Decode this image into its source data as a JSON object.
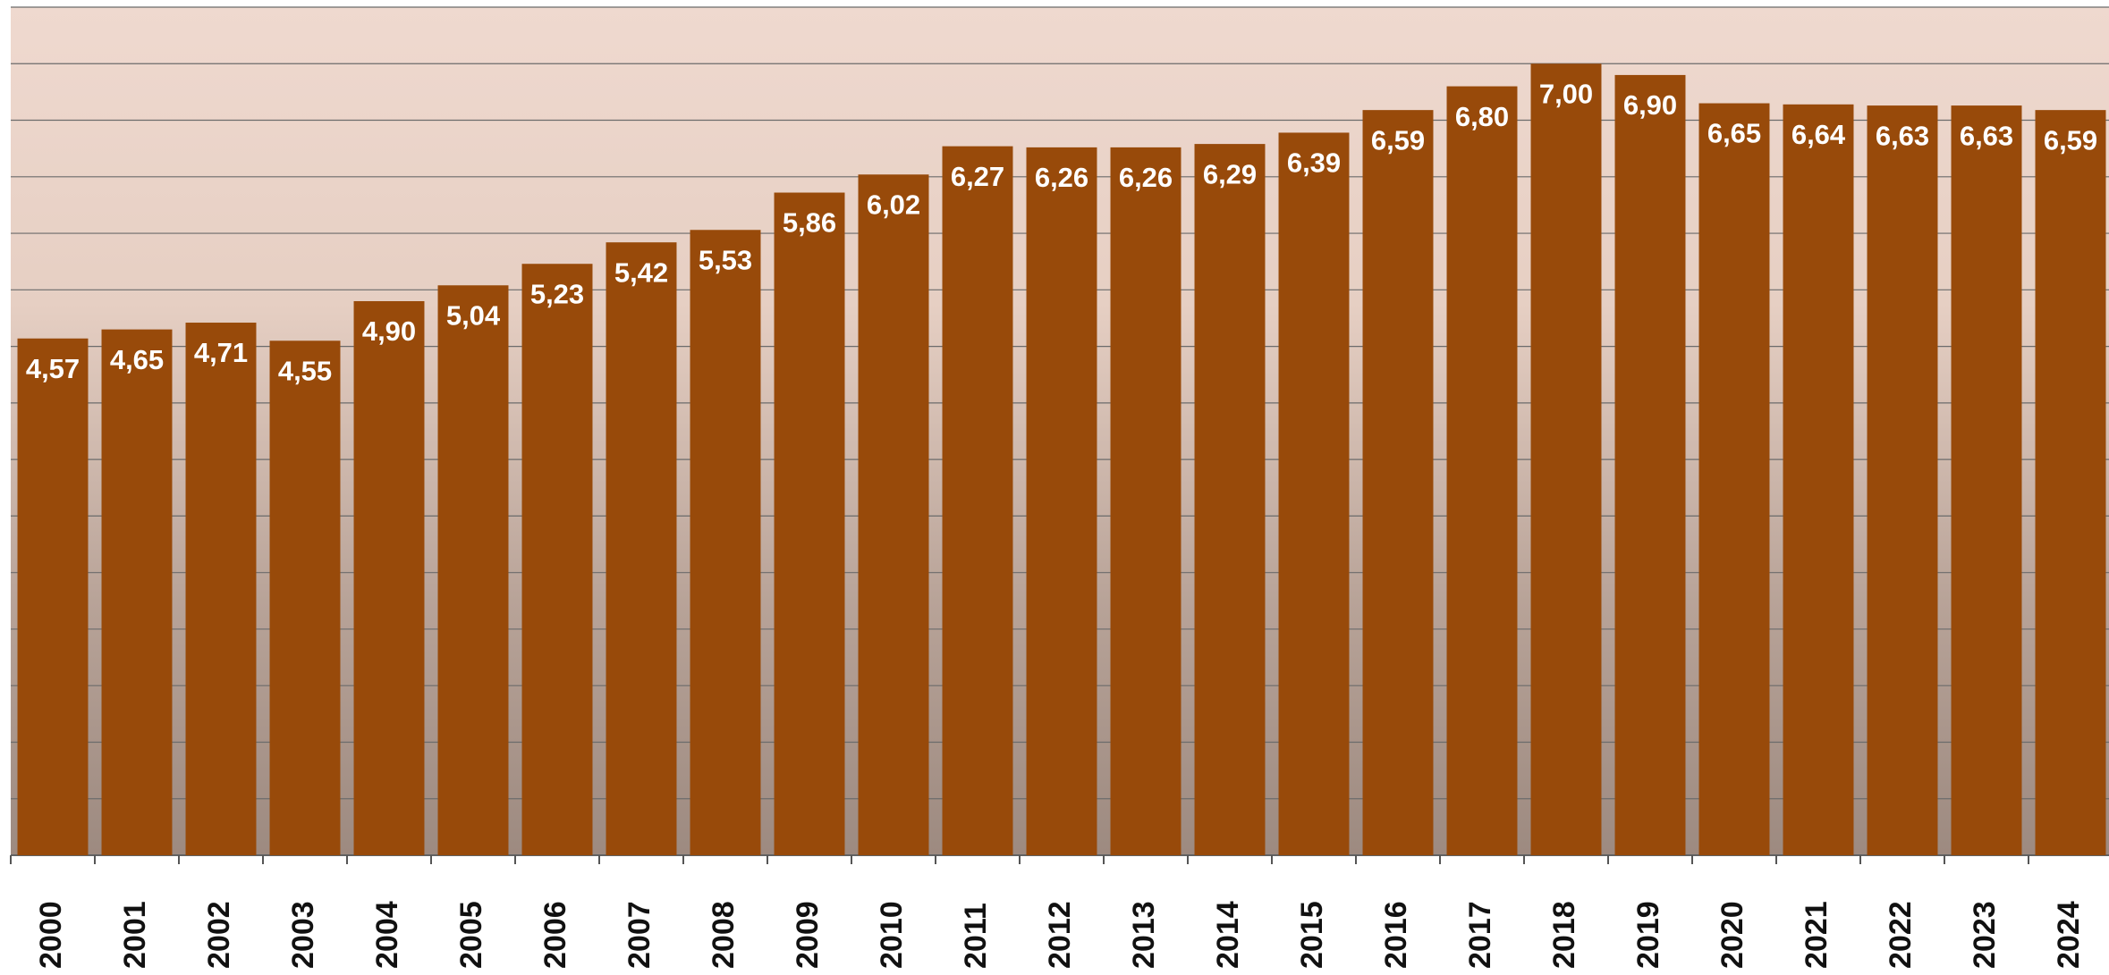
{
  "chart_data": {
    "type": "bar",
    "categories": [
      "2000",
      "2001",
      "2002",
      "2003",
      "2004",
      "2005",
      "2006",
      "2007",
      "2008",
      "2009",
      "2010",
      "2011",
      "2012",
      "2013",
      "2014",
      "2015",
      "2016",
      "2017",
      "2018",
      "2019",
      "2020",
      "2021",
      "2022",
      "2023",
      "2024"
    ],
    "values": [
      4.57,
      4.65,
      4.71,
      4.55,
      4.9,
      5.04,
      5.23,
      5.42,
      5.53,
      5.86,
      6.02,
      6.27,
      6.26,
      6.26,
      6.29,
      6.39,
      6.59,
      6.8,
      7.0,
      6.9,
      6.65,
      6.64,
      6.63,
      6.63,
      6.59
    ],
    "value_labels": [
      "4,57",
      "4,65",
      "4,71",
      "4,55",
      "4,90",
      "5,04",
      "5,23",
      "5,42",
      "5,53",
      "5,86",
      "6,02",
      "6,27",
      "6,26",
      "6,26",
      "6,29",
      "6,39",
      "6,59",
      "6,80",
      "7,00",
      "6,90",
      "6,65",
      "6,64",
      "6,63",
      "6,63",
      "6,59"
    ],
    "color": "#984a0a",
    "ylim": [
      0,
      7.5
    ],
    "yticks": [
      0,
      0.5,
      1,
      1.5,
      2,
      2.5,
      3,
      3.5,
      4,
      4.5,
      5,
      5.5,
      6,
      6.5,
      7,
      7.5
    ],
    "grid": true
  }
}
